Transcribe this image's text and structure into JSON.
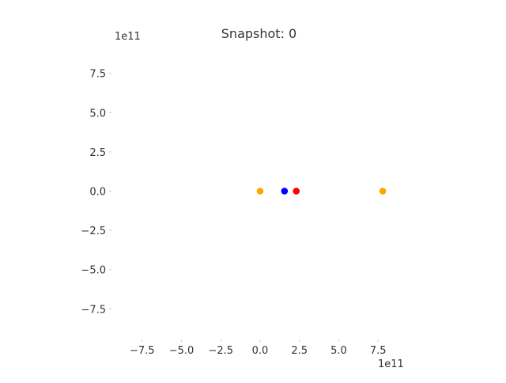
{
  "chart_data": {
    "type": "scatter",
    "title": "Snapshot: 0",
    "xlabel": "",
    "ylabel": "",
    "x_offset_label": "1e11",
    "y_offset_label": "1e11",
    "xlim": [
      -9.3,
      9.3
    ],
    "ylim": [
      -9.3,
      9.3
    ],
    "x_scale": "1e11",
    "y_scale": "1e11",
    "xticks": [
      -7.5,
      -5.0,
      -2.5,
      0.0,
      2.5,
      5.0,
      7.5
    ],
    "yticks": [
      -7.5,
      -5.0,
      -2.5,
      0.0,
      2.5,
      5.0,
      7.5
    ],
    "xtick_labels": [
      "−7.5",
      "−5.0",
      "−2.5",
      "0.0",
      "2.5",
      "5.0",
      "7.5"
    ],
    "ytick_labels": [
      "−7.5",
      "−5.0",
      "−2.5",
      "0.0",
      "2.5",
      "5.0",
      "7.5"
    ],
    "grid": false,
    "points": [
      {
        "x": 0.0,
        "y": 0.0,
        "color": "#ffa500"
      },
      {
        "x": 1.55,
        "y": 0.0,
        "color": "#0000ff"
      },
      {
        "x": 2.3,
        "y": 0.0,
        "color": "#ff0000"
      },
      {
        "x": 7.8,
        "y": 0.0,
        "color": "#ffa500"
      }
    ]
  }
}
